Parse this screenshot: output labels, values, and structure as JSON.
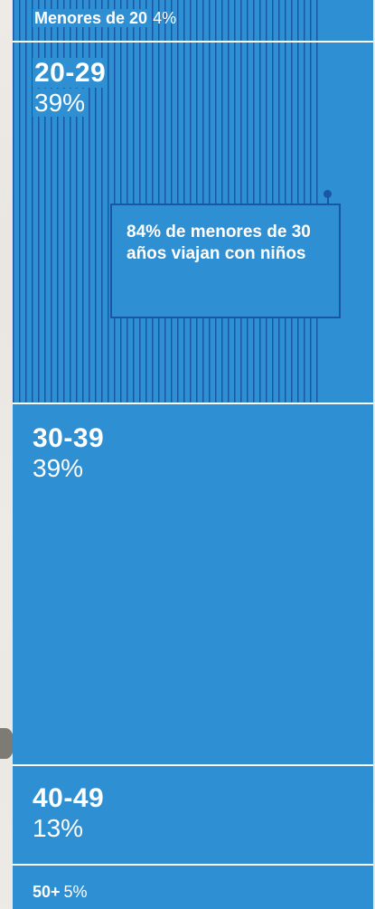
{
  "chart_data": {
    "type": "stacked-bar",
    "categories": [
      "Menores de 20",
      "20-29",
      "30-39",
      "40-49",
      "50+"
    ],
    "values": [
      4,
      39,
      39,
      13,
      5
    ],
    "labels": [
      "4%",
      "39%",
      "39%",
      "13%",
      "5%"
    ],
    "annotation": "84% de menores de 30 años viajan con niños"
  },
  "colors": {
    "fill": "#2f8fd3",
    "hatch": "#1856a6",
    "divider": "#ffffff",
    "background": "#eeebe6"
  }
}
